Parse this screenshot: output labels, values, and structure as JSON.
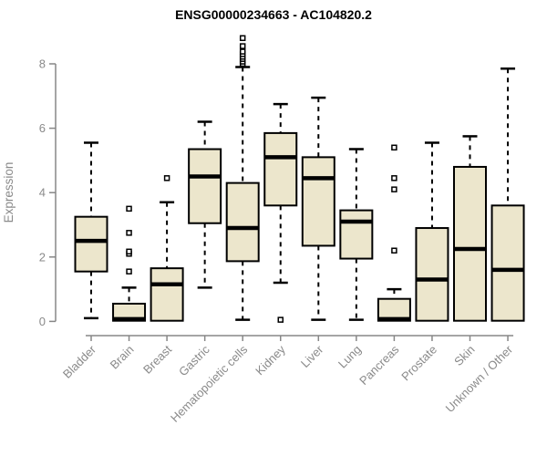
{
  "chart_data": {
    "type": "boxplot",
    "title": "ENSG00000234663 - AC104820.2",
    "xlabel": "",
    "ylabel": "Expression",
    "ylim": [
      0,
      8.8
    ],
    "yticks": [
      0,
      2,
      4,
      6,
      8
    ],
    "grid": false,
    "legend": "none",
    "categories": [
      "Bladder",
      "Brain",
      "Breast",
      "Gastric",
      "Hematopoietic cells",
      "Kidney",
      "Liver",
      "Lung",
      "Pancreas",
      "Prostate",
      "Skin",
      "Unknown / Other"
    ],
    "boxes": [
      {
        "category": "Bladder",
        "whisker_low": 0.1,
        "q1": 1.55,
        "median": 2.5,
        "q3": 3.25,
        "whisker_high": 5.55,
        "outliers": []
      },
      {
        "category": "Brain",
        "whisker_low": 0.02,
        "q1": 0.02,
        "median": 0.07,
        "q3": 0.55,
        "whisker_high": 1.05,
        "outliers": [
          1.55,
          2.1,
          2.17,
          2.75,
          3.5
        ]
      },
      {
        "category": "Breast",
        "whisker_low": 0.02,
        "q1": 0.02,
        "median": 1.15,
        "q3": 1.65,
        "whisker_high": 3.7,
        "outliers": [
          4.45
        ]
      },
      {
        "category": "Gastric",
        "whisker_low": 1.05,
        "q1": 3.05,
        "median": 4.5,
        "q3": 5.35,
        "whisker_high": 6.2,
        "outliers": []
      },
      {
        "category": "Hematopoietic cells",
        "whisker_low": 0.05,
        "q1": 1.87,
        "median": 2.9,
        "q3": 4.3,
        "whisker_high": 7.9,
        "outliers": [
          8.0,
          8.07,
          8.15,
          8.22,
          8.3,
          8.38,
          8.55,
          8.8
        ]
      },
      {
        "category": "Kidney",
        "whisker_low": 1.2,
        "q1": 3.6,
        "median": 5.1,
        "q3": 5.85,
        "whisker_high": 6.75,
        "outliers": [
          0.05
        ]
      },
      {
        "category": "Liver",
        "whisker_low": 0.05,
        "q1": 2.35,
        "median": 4.45,
        "q3": 5.1,
        "whisker_high": 6.95,
        "outliers": []
      },
      {
        "category": "Lung",
        "whisker_low": 0.05,
        "q1": 1.95,
        "median": 3.1,
        "q3": 3.45,
        "whisker_high": 5.35,
        "outliers": []
      },
      {
        "category": "Pancreas",
        "whisker_low": 0.02,
        "q1": 0.02,
        "median": 0.07,
        "q3": 0.7,
        "whisker_high": 1.0,
        "outliers": [
          2.2,
          4.1,
          4.45,
          5.4
        ]
      },
      {
        "category": "Prostate",
        "whisker_low": 0.02,
        "q1": 0.02,
        "median": 1.3,
        "q3": 2.9,
        "whisker_high": 5.55,
        "outliers": []
      },
      {
        "category": "Skin",
        "whisker_low": 0.02,
        "q1": 0.02,
        "median": 2.25,
        "q3": 4.8,
        "whisker_high": 5.75,
        "outliers": []
      },
      {
        "category": "Unknown / Other",
        "whisker_low": 0.02,
        "q1": 0.02,
        "median": 1.6,
        "q3": 3.6,
        "whisker_high": 7.85,
        "outliers": []
      }
    ],
    "colors": {
      "box_fill": "#ECE6CC",
      "box_border": "#000000",
      "median": "#000000",
      "whisker": "#000000",
      "outlier_fill": "#ffffff",
      "axis": "#878787",
      "tick_label": "#8a8a8a",
      "title": "#000000",
      "background": "#ffffff"
    }
  }
}
